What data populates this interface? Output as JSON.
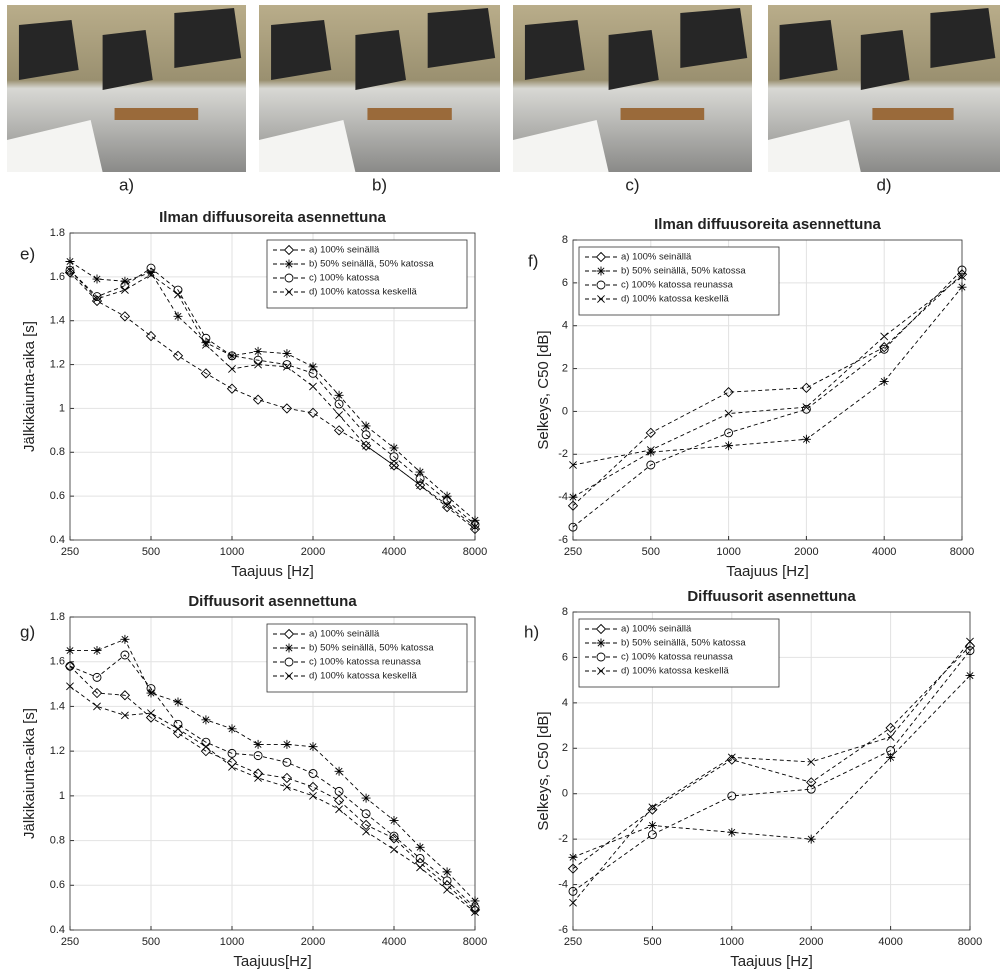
{
  "photos": {
    "labels": [
      "a)",
      "b)",
      "c)",
      "d)"
    ]
  },
  "chart_data": [
    {
      "type": "line",
      "panel_label": "e)",
      "title": "Ilman diffuusoreita asennettuna",
      "xlabel": "Taajuus [Hz]",
      "ylabel": "Jälkikaiunta-aika [s]",
      "x": [
        250,
        315,
        400,
        500,
        630,
        800,
        1000,
        1250,
        1600,
        2000,
        2500,
        3150,
        4000,
        5000,
        6300,
        8000
      ],
      "xlim": [
        250,
        8000
      ],
      "ylim": [
        0.4,
        1.8
      ],
      "xticks": [
        250,
        500,
        1000,
        2000,
        4000,
        8000
      ],
      "yticks": [
        0.4,
        0.6,
        0.8,
        1,
        1.2,
        1.4,
        1.6,
        1.8
      ],
      "log_x": true,
      "grid": true,
      "legend": "upper right",
      "series": [
        {
          "name": "a) 100% seinällä",
          "color": "#000000",
          "marker": "diamond",
          "values": [
            1.62,
            1.49,
            1.42,
            1.33,
            1.24,
            1.16,
            1.09,
            1.04,
            1.0,
            0.98,
            0.9,
            0.83,
            0.74,
            0.65,
            0.55,
            0.45
          ]
        },
        {
          "name": "b) 50% seinällä, 50% katossa",
          "color": "#000000",
          "marker": "star",
          "values": [
            1.67,
            1.59,
            1.58,
            1.62,
            1.42,
            1.3,
            1.24,
            1.26,
            1.25,
            1.19,
            1.06,
            0.92,
            0.82,
            0.71,
            0.6,
            0.49
          ]
        },
        {
          "name": "c) 100% katossa",
          "color": "#000000",
          "marker": "circle",
          "values": [
            1.63,
            1.51,
            1.56,
            1.64,
            1.54,
            1.32,
            1.24,
            1.22,
            1.2,
            1.16,
            1.02,
            0.88,
            0.78,
            0.68,
            0.58,
            0.47
          ]
        },
        {
          "name": "d) 100% katossa keskellä",
          "color": "#000000",
          "marker": "x",
          "values": [
            1.63,
            1.5,
            1.54,
            1.61,
            1.52,
            1.29,
            1.18,
            1.2,
            1.19,
            1.1,
            0.97,
            0.83,
            0.74,
            0.65,
            0.56,
            0.46
          ]
        }
      ]
    },
    {
      "type": "line",
      "panel_label": "f)",
      "title": "Ilman diffuusoreita asennettuna",
      "xlabel": "Taajuus [Hz]",
      "ylabel": "Selkeys, C50 [dB]",
      "x": [
        250,
        500,
        1000,
        2000,
        4000,
        8000
      ],
      "xlim": [
        250,
        8000
      ],
      "ylim": [
        -6,
        8
      ],
      "xticks": [
        250,
        500,
        1000,
        2000,
        4000,
        8000
      ],
      "yticks": [
        -6,
        -4,
        -2,
        0,
        2,
        4,
        6,
        8
      ],
      "log_x": true,
      "grid": true,
      "legend": "upper left",
      "series": [
        {
          "name": "a) 100% seinällä",
          "color": "#000000",
          "marker": "diamond",
          "values": [
            -4.4,
            -1.0,
            0.9,
            1.1,
            3.0,
            6.4
          ]
        },
        {
          "name": "b) 50% seinällä, 50% katossa",
          "color": "#000000",
          "marker": "star",
          "values": [
            -4.0,
            -1.9,
            -1.6,
            -1.3,
            1.4,
            5.8
          ]
        },
        {
          "name": "c) 100% katossa reunassa",
          "color": "#000000",
          "marker": "circle",
          "values": [
            -5.4,
            -2.5,
            -1.0,
            0.1,
            2.9,
            6.6
          ]
        },
        {
          "name": "d) 100% katossa keskellä",
          "color": "#000000",
          "marker": "x",
          "values": [
            -2.5,
            -1.8,
            -0.1,
            0.2,
            3.5,
            6.3
          ]
        }
      ]
    },
    {
      "type": "line",
      "panel_label": "g)",
      "title": "Diffuusorit asennettuna",
      "xlabel": "Taajuus[Hz]",
      "ylabel": "Jälkikaiunta-aika [s]",
      "x": [
        250,
        315,
        400,
        500,
        630,
        800,
        1000,
        1250,
        1600,
        2000,
        2500,
        3150,
        4000,
        5000,
        6300,
        8000
      ],
      "xlim": [
        250,
        8000
      ],
      "ylim": [
        0.4,
        1.8
      ],
      "xticks": [
        250,
        500,
        1000,
        2000,
        4000,
        8000
      ],
      "yticks": [
        0.4,
        0.6,
        0.8,
        1,
        1.2,
        1.4,
        1.6,
        1.8
      ],
      "log_x": true,
      "grid": true,
      "legend": "upper right",
      "series": [
        {
          "name": "a) 100% seinällä",
          "color": "#000000",
          "marker": "diamond",
          "values": [
            1.58,
            1.46,
            1.45,
            1.35,
            1.28,
            1.2,
            1.15,
            1.1,
            1.08,
            1.04,
            0.98,
            0.87,
            0.81,
            0.7,
            0.6,
            0.49
          ]
        },
        {
          "name": "b) 50% seinällä, 50% katossa",
          "color": "#000000",
          "marker": "star",
          "values": [
            1.65,
            1.65,
            1.7,
            1.46,
            1.42,
            1.34,
            1.3,
            1.23,
            1.23,
            1.22,
            1.11,
            0.99,
            0.89,
            0.77,
            0.66,
            0.53
          ]
        },
        {
          "name": "c) 100% katossa reunassa",
          "color": "#000000",
          "marker": "circle",
          "values": [
            1.58,
            1.53,
            1.63,
            1.48,
            1.32,
            1.24,
            1.19,
            1.18,
            1.15,
            1.1,
            1.02,
            0.92,
            0.82,
            0.72,
            0.62,
            0.5
          ]
        },
        {
          "name": "d) 100% katossa keskellä",
          "color": "#000000",
          "marker": "x",
          "values": [
            1.49,
            1.4,
            1.36,
            1.37,
            1.3,
            1.22,
            1.13,
            1.08,
            1.04,
            1.0,
            0.94,
            0.84,
            0.76,
            0.68,
            0.58,
            0.48
          ]
        }
      ]
    },
    {
      "type": "line",
      "panel_label": "h)",
      "title": "Diffuusorit asennettuna",
      "xlabel": "Taajuus [Hz]",
      "ylabel": "Selkeys, C50 [dB]",
      "x": [
        250,
        500,
        1000,
        2000,
        4000,
        8000
      ],
      "xlim": [
        250,
        8000
      ],
      "ylim": [
        -6,
        8
      ],
      "xticks": [
        250,
        500,
        1000,
        2000,
        4000,
        8000
      ],
      "yticks": [
        -6,
        -4,
        -2,
        0,
        2,
        4,
        6,
        8
      ],
      "log_x": true,
      "grid": true,
      "legend": "upper left",
      "series": [
        {
          "name": "a) 100% seinällä",
          "color": "#000000",
          "marker": "diamond",
          "values": [
            -3.3,
            -0.7,
            1.5,
            0.5,
            2.9,
            6.5
          ]
        },
        {
          "name": "b) 50% seinällä, 50% katossa",
          "color": "#000000",
          "marker": "star",
          "values": [
            -2.8,
            -1.4,
            -1.7,
            -2.0,
            1.6,
            5.2
          ]
        },
        {
          "name": "c) 100% katossa reunassa",
          "color": "#000000",
          "marker": "circle",
          "values": [
            -4.3,
            -1.8,
            -0.1,
            0.2,
            1.9,
            6.3
          ]
        },
        {
          "name": "d) 100% katossa keskellä",
          "color": "#000000",
          "marker": "x",
          "values": [
            -4.8,
            -0.6,
            1.6,
            1.4,
            2.5,
            6.7
          ]
        }
      ]
    }
  ]
}
